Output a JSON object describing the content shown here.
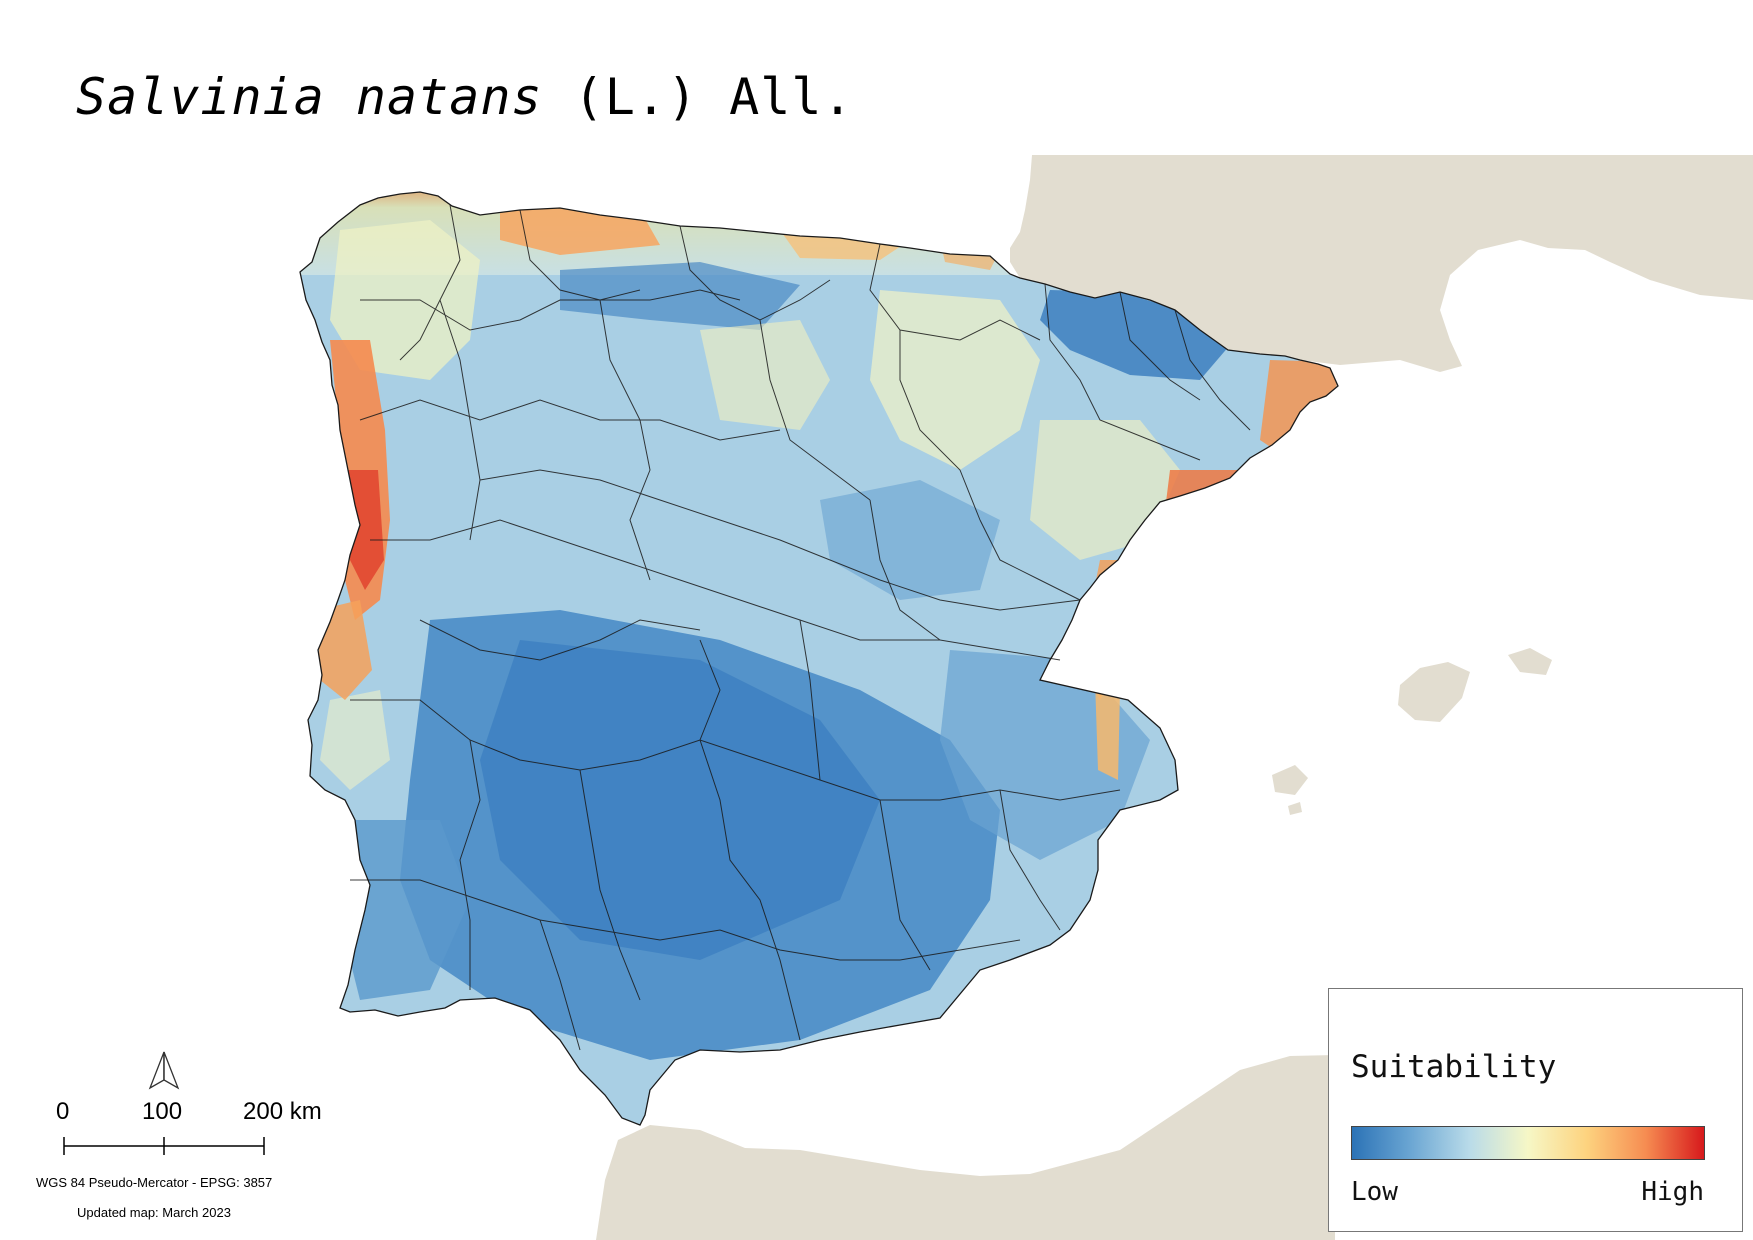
{
  "title": {
    "species": "Salvinia natans",
    "authority": " (L.) All."
  },
  "legend": {
    "title": "Suitability",
    "low_label": "Low",
    "high_label": "High",
    "ramp_colors": [
      "#2c73b6",
      "#6ba6d3",
      "#b9dbe9",
      "#f6f7c6",
      "#fdd37f",
      "#f68d52",
      "#d7191c"
    ]
  },
  "scale_bar": {
    "labels": [
      "0",
      "100",
      "200 km"
    ]
  },
  "north_arrow": {
    "icon": "north-arrow-icon"
  },
  "notes": {
    "crs": "WGS 84 Pseudo-Mercator  - EPSG: 3857",
    "updated": "Updated map: March 2023"
  },
  "colors": {
    "background": "#ffffff",
    "neighbouring_land": "#e2ddd0",
    "region_borders": "#1a1a1a"
  }
}
